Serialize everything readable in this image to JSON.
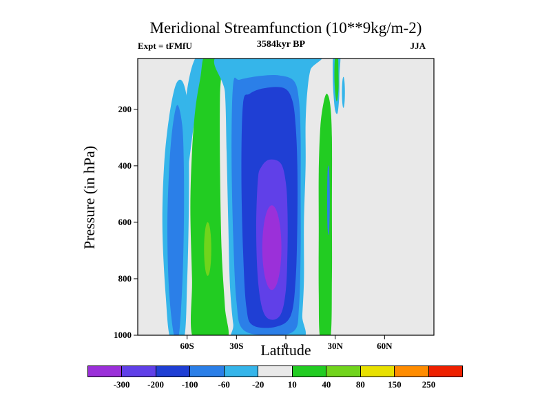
{
  "header": {
    "title": "Meridional Streamfunction (10**9kg/m-2)",
    "experiment_label": "Expt = tFMfU",
    "time_label": "3584kyr BP",
    "season_label": "JJA"
  },
  "chart_data": {
    "type": "contour",
    "title": "Meridional Streamfunction (10**9kg/m-2)",
    "units": "10**9 kg/m-2",
    "xlabel": "Latitude",
    "ylabel": "Pressure (in hPa)",
    "xlim": [
      -90,
      90
    ],
    "plim": [
      20,
      1000
    ],
    "grid": false,
    "background_level": "-20 to 10",
    "background_color": "#e9e9e9",
    "x_ticks": [
      {
        "value": -60,
        "label": "60S"
      },
      {
        "value": -30,
        "label": "30S"
      },
      {
        "value": 0,
        "label": "0"
      },
      {
        "value": 30,
        "label": "30N"
      },
      {
        "value": 60,
        "label": "60N"
      }
    ],
    "y_ticks": [
      {
        "value": 200,
        "label": "200"
      },
      {
        "value": 400,
        "label": "400"
      },
      {
        "value": 600,
        "label": "600"
      },
      {
        "value": 800,
        "label": "800"
      },
      {
        "value": 1000,
        "label": "1000"
      }
    ],
    "colorbar": {
      "position": "bottom",
      "boundary_labels": [
        "-300",
        "-200",
        "-100",
        "-60",
        "-20",
        "10",
        "40",
        "80",
        "150",
        "250"
      ],
      "colors": [
        "#9b30d9",
        "#6040e8",
        "#1f3fd4",
        "#2b7fe8",
        "#35b5ea",
        "#e9e9e9",
        "#22cc22",
        "#71d41c",
        "#e8e000",
        "#ff8c00",
        "#ee2000"
      ]
    },
    "regions": [
      {
        "name": "sh-polar-cyan",
        "level": "-60 to -20",
        "color": "#35b5ea",
        "points": [
          [
            -70,
            1015
          ],
          [
            -73,
            860
          ],
          [
            -75,
            620
          ],
          [
            -74,
            400
          ],
          [
            -71,
            230
          ],
          [
            -67,
            115
          ],
          [
            -63,
            100
          ],
          [
            -60,
            170
          ],
          [
            -59,
            320
          ],
          [
            -59,
            560
          ],
          [
            -60,
            810
          ],
          [
            -62,
            1015
          ]
        ]
      },
      {
        "name": "sh-polar-blue",
        "level": "-100 to -60",
        "color": "#2b7fe8",
        "points": [
          [
            -68,
            1000
          ],
          [
            -71,
            840
          ],
          [
            -72,
            620
          ],
          [
            -71,
            420
          ],
          [
            -69,
            270
          ],
          [
            -66,
            185
          ],
          [
            -63,
            255
          ],
          [
            -62,
            400
          ],
          [
            -62,
            620
          ],
          [
            -63,
            830
          ],
          [
            -65,
            1000
          ]
        ]
      },
      {
        "name": "sh-midlat-cyan-fringe",
        "level": "-60 to -20",
        "color": "#35b5ea",
        "points": [
          [
            -49,
            5
          ],
          [
            -52,
            110
          ],
          [
            -56,
            260
          ],
          [
            -60,
            420
          ],
          [
            -62,
            330
          ],
          [
            -61,
            180
          ],
          [
            -58,
            70
          ],
          [
            -54,
            10
          ]
        ]
      },
      {
        "name": "sh-ferrel-green",
        "level": "10 to 40",
        "color": "#22cc22",
        "points": [
          [
            -56,
            1015
          ],
          [
            -57,
            800
          ],
          [
            -58,
            550
          ],
          [
            -57,
            350
          ],
          [
            -55,
            200
          ],
          [
            -52,
            90
          ],
          [
            -49,
            5
          ],
          [
            -39,
            5
          ],
          [
            -40,
            150
          ],
          [
            -40,
            400
          ],
          [
            -39,
            700
          ],
          [
            -37,
            900
          ],
          [
            -36,
            1015
          ]
        ]
      },
      {
        "name": "sh-ferrel-core",
        "level": "40 to 80",
        "color": "#71d41c",
        "ellipse": {
          "lat": -47.5,
          "p": 695,
          "rlat": 2.2,
          "rp": 95
        }
      },
      {
        "name": "hadley-cyan",
        "level": "-60 to -20",
        "color": "#35b5ea",
        "points": [
          [
            -40,
            5
          ],
          [
            -37,
            140
          ],
          [
            -36,
            350
          ],
          [
            -35,
            600
          ],
          [
            -34,
            820
          ],
          [
            -32,
            960
          ],
          [
            -30,
            1015
          ],
          [
            9,
            1015
          ],
          [
            10,
            930
          ],
          [
            11,
            800
          ],
          [
            11,
            600
          ],
          [
            12,
            400
          ],
          [
            12,
            250
          ],
          [
            13,
            140
          ],
          [
            15,
            60
          ],
          [
            19,
            5
          ]
        ]
      },
      {
        "name": "hadley-blue",
        "level": "-100 to -60",
        "color": "#2b7fe8",
        "points": [
          [
            -32,
            110
          ],
          [
            -33,
            350
          ],
          [
            -32,
            650
          ],
          [
            -30,
            880
          ],
          [
            -26,
            980
          ],
          [
            -10,
            1000
          ],
          [
            5,
            985
          ],
          [
            8,
            900
          ],
          [
            9,
            700
          ],
          [
            9,
            500
          ],
          [
            9,
            300
          ],
          [
            8,
            170
          ],
          [
            5,
            100
          ],
          [
            -4,
            80
          ],
          [
            -16,
            82
          ],
          [
            -28,
            95
          ]
        ]
      },
      {
        "name": "hadley-darkblue",
        "level": "-200 to -100",
        "color": "#1f3fd4",
        "points": [
          [
            -26,
            180
          ],
          [
            -27,
            420
          ],
          [
            -26,
            700
          ],
          [
            -24,
            900
          ],
          [
            -20,
            965
          ],
          [
            -6,
            970
          ],
          [
            3,
            930
          ],
          [
            6,
            800
          ],
          [
            7,
            600
          ],
          [
            7,
            400
          ],
          [
            6,
            260
          ],
          [
            4,
            170
          ],
          [
            -1,
            125
          ],
          [
            -13,
            125
          ],
          [
            -22,
            145
          ]
        ]
      },
      {
        "name": "hadley-violet",
        "level": "-300 to -200",
        "color": "#6040e8",
        "points": [
          [
            -17,
            450
          ],
          [
            -18,
            620
          ],
          [
            -17,
            800
          ],
          [
            -14,
            912
          ],
          [
            -9,
            945
          ],
          [
            -3,
            925
          ],
          [
            0,
            840
          ],
          [
            1,
            700
          ],
          [
            1,
            560
          ],
          [
            0,
            460
          ],
          [
            -3,
            392
          ],
          [
            -10,
            378
          ],
          [
            -15,
            405
          ]
        ]
      },
      {
        "name": "hadley-purple-core",
        "level": "< -300",
        "color": "#9b30d9",
        "ellipse": {
          "lat": -8.5,
          "p": 690,
          "rlat": 5.8,
          "rp": 150
        }
      },
      {
        "name": "nh-subtropics-green",
        "level": "10 to 40",
        "color": "#22cc22",
        "points": [
          [
            21,
            1015
          ],
          [
            20,
            850
          ],
          [
            20,
            620
          ],
          [
            20,
            420
          ],
          [
            21,
            260
          ],
          [
            23,
            175
          ],
          [
            25,
            145
          ],
          [
            27,
            185
          ],
          [
            28,
            300
          ],
          [
            28,
            550
          ],
          [
            28,
            800
          ],
          [
            27,
            1015
          ]
        ]
      },
      {
        "name": "nh-sliver-blue",
        "level": "-100 to -60",
        "color": "#2b7fe8",
        "points": [
          [
            25.4,
            415
          ],
          [
            25.1,
            520
          ],
          [
            25.4,
            625
          ],
          [
            26.3,
            635
          ],
          [
            26.7,
            520
          ],
          [
            26.3,
            410
          ]
        ]
      },
      {
        "name": "nh-top-cyan",
        "level": "-60 to -20",
        "color": "#35b5ea",
        "points": [
          [
            29,
            5
          ],
          [
            28.5,
            80
          ],
          [
            29,
            150
          ],
          [
            30,
            205
          ],
          [
            31.5,
            212
          ],
          [
            32.5,
            150
          ],
          [
            32.6,
            80
          ],
          [
            33,
            5
          ]
        ]
      },
      {
        "name": "nh-top-green",
        "level": "10 to 40",
        "color": "#22cc22",
        "points": [
          [
            30,
            8
          ],
          [
            29.5,
            80
          ],
          [
            30,
            140
          ],
          [
            31,
            172
          ],
          [
            32,
            130
          ],
          [
            32,
            70
          ],
          [
            31.6,
            8
          ]
        ]
      },
      {
        "name": "nh-top-dot-cyan",
        "level": "-60 to -20",
        "color": "#35b5ea",
        "ellipse": {
          "lat": 35,
          "p": 140,
          "rlat": 0.9,
          "rp": 55
        }
      }
    ]
  }
}
